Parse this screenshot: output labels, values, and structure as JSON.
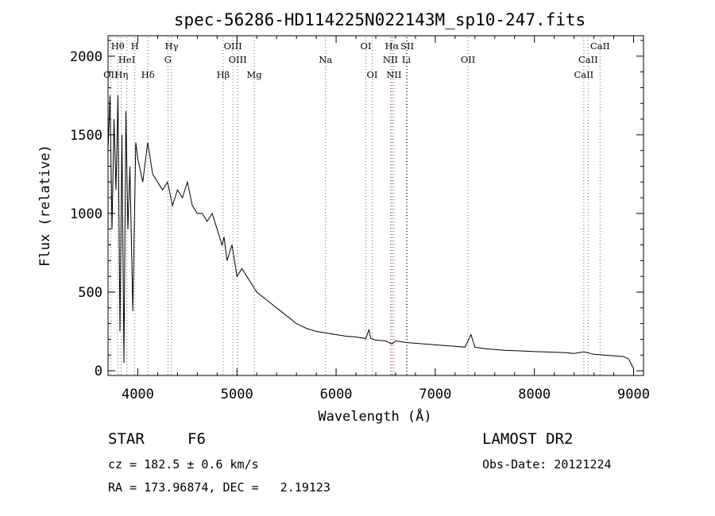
{
  "chart_data": {
    "type": "line",
    "title": "spec-56286-HD114225N022143M_sp10-247.fits",
    "xlabel": "Wavelength (Å)",
    "ylabel": "Flux (relative)",
    "xlim": [
      3700,
      9100
    ],
    "ylim": [
      -30,
      2130
    ],
    "xticks": [
      4000,
      5000,
      6000,
      7000,
      8000,
      9000
    ],
    "yticks": [
      0,
      500,
      1000,
      1500,
      2000
    ],
    "grid": false,
    "series": [
      {
        "x": [
          3700,
          3720,
          3740,
          3760,
          3780,
          3800,
          3820,
          3840,
          3860,
          3880,
          3900,
          3920,
          3950,
          3980,
          4000,
          4050,
          4100,
          4150,
          4200,
          4250,
          4300,
          4350,
          4400,
          4450,
          4500,
          4550,
          4600,
          4650,
          4700,
          4750,
          4800,
          4850,
          4870,
          4900,
          4950,
          5000,
          5050,
          5100,
          5150,
          5200,
          5300,
          5400,
          5500,
          5600,
          5700,
          5800,
          5900,
          6000,
          6100,
          6200,
          6300,
          6330,
          6350,
          6400,
          6500,
          6563,
          6600,
          6700,
          6800,
          6900,
          7000,
          7100,
          7200,
          7300,
          7360,
          7400,
          7500,
          7600,
          7700,
          7800,
          7900,
          8000,
          8100,
          8200,
          8300,
          8400,
          8500,
          8600,
          8700,
          8800,
          8900,
          8950,
          9000
        ],
        "y": [
          1400,
          1750,
          900,
          1600,
          1150,
          1750,
          250,
          1500,
          50,
          1650,
          900,
          1300,
          380,
          1450,
          1350,
          1200,
          1450,
          1250,
          1200,
          1150,
          1200,
          1050,
          1150,
          1100,
          1200,
          1050,
          1000,
          1000,
          950,
          1000,
          900,
          800,
          850,
          700,
          800,
          600,
          650,
          600,
          550,
          500,
          450,
          400,
          350,
          300,
          270,
          250,
          240,
          230,
          220,
          215,
          205,
          260,
          205,
          195,
          190,
          170,
          190,
          180,
          175,
          170,
          165,
          160,
          155,
          150,
          230,
          150,
          140,
          135,
          130,
          128,
          125,
          122,
          120,
          118,
          116,
          110,
          120,
          105,
          100,
          95,
          90,
          75,
          15
        ]
      }
    ],
    "spectral_lines": [
      {
        "label": "Hθ",
        "wavelength": 3798,
        "row": 0,
        "color": "#666666"
      },
      {
        "label": "H",
        "wavelength": 3970,
        "row": 0,
        "color": "#666666"
      },
      {
        "label": "Hγ",
        "wavelength": 4341,
        "row": 0,
        "color": "#666666"
      },
      {
        "label": "OIII",
        "wavelength": 4959,
        "row": 0,
        "color": "#666666"
      },
      {
        "label": "OI",
        "wavelength": 6300,
        "row": 0,
        "color": "#666666"
      },
      {
        "label": "Hα",
        "wavelength": 6563,
        "row": 0,
        "color": "#cc0000"
      },
      {
        "label": "SII",
        "wavelength": 6717,
        "row": 0,
        "color": "#cc0000"
      },
      {
        "label": "CaII",
        "wavelength": 8662,
        "row": 0,
        "color": "#666666"
      },
      {
        "label": "HeI",
        "wavelength": 3889,
        "row": 1,
        "color": "#666666"
      },
      {
        "label": "G",
        "wavelength": 4304,
        "row": 1,
        "color": "#666666"
      },
      {
        "label": "OIII",
        "wavelength": 5007,
        "row": 1,
        "color": "#666666"
      },
      {
        "label": "Na",
        "wavelength": 5893,
        "row": 1,
        "color": "#666666"
      },
      {
        "label": "NII",
        "wavelength": 6548,
        "row": 1,
        "color": "#666666"
      },
      {
        "label": "Li",
        "wavelength": 6708,
        "row": 1,
        "color": "#666666"
      },
      {
        "label": "OII",
        "wavelength": 7330,
        "row": 1,
        "color": "#666666"
      },
      {
        "label": "CaII",
        "wavelength": 8542,
        "row": 1,
        "color": "#666666"
      },
      {
        "label": "OII",
        "wavelength": 3727,
        "row": 2,
        "color": "#666666"
      },
      {
        "label": "Hη",
        "wavelength": 3835,
        "row": 2,
        "color": "#666666"
      },
      {
        "label": "Hδ",
        "wavelength": 4102,
        "row": 2,
        "color": "#666666"
      },
      {
        "label": "Hβ",
        "wavelength": 4861,
        "row": 2,
        "color": "#666666"
      },
      {
        "label": "Mg",
        "wavelength": 5175,
        "row": 2,
        "color": "#666666"
      },
      {
        "label": "OI",
        "wavelength": 6364,
        "row": 2,
        "color": "#666666"
      },
      {
        "label": "NII",
        "wavelength": 6583,
        "row": 2,
        "color": "#666666"
      },
      {
        "label": "CaII",
        "wavelength": 8498,
        "row": 2,
        "color": "#666666"
      }
    ]
  },
  "info": {
    "class_type": "STAR",
    "subclass": "F6",
    "survey": "LAMOST DR2",
    "cz": "cz = 182.5 ± 0.6 km/s",
    "obs_date": "Obs-Date: 20121224",
    "coords": "RA = 173.96874, DEC =   2.19123"
  }
}
